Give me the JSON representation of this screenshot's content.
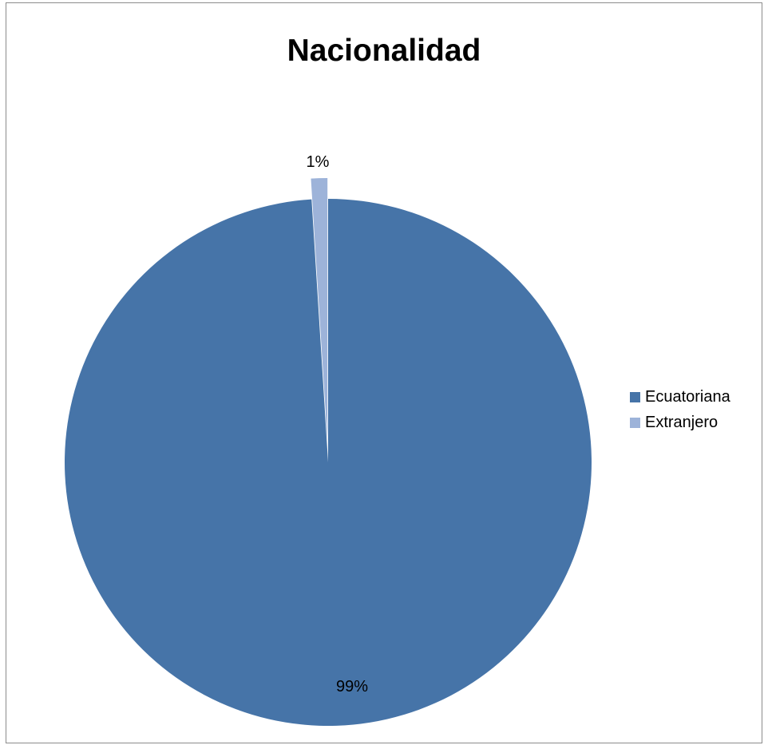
{
  "chart_data": {
    "type": "pie",
    "title": "Nacionalidad",
    "categories": [
      "Ecuatoriana",
      "Extranjero"
    ],
    "values": [
      99,
      1
    ],
    "labels": [
      "99%",
      "1%"
    ],
    "colors": [
      "#4674a8",
      "#9db3d9"
    ],
    "legend_position": "right"
  }
}
